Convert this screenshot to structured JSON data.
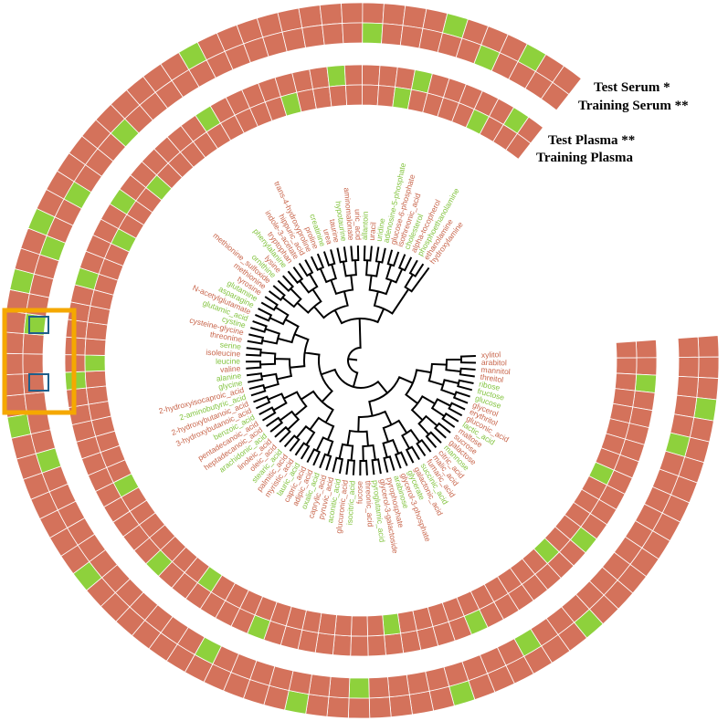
{
  "figure": {
    "cell_colors": [
      "#d4725b",
      "#8ed13c"
    ],
    "rings": [
      {
        "name": "Test Serum *",
        "values": [
          0,
          0,
          0,
          1,
          0,
          0,
          0,
          0,
          0,
          0,
          0,
          0,
          0,
          0,
          0,
          1,
          0,
          0,
          0,
          0,
          0,
          0,
          1,
          0,
          0,
          0,
          0,
          0,
          0,
          0,
          1,
          0,
          0,
          0,
          0,
          0,
          0,
          0,
          0,
          0,
          0,
          0,
          1,
          0,
          0,
          0,
          0,
          0,
          0,
          0,
          1,
          0,
          0,
          0,
          0,
          0,
          0,
          1,
          0,
          0,
          1,
          0,
          0,
          0,
          0,
          0,
          0,
          0,
          0,
          0,
          0,
          1,
          0,
          0,
          0,
          0,
          0,
          0,
          0,
          0,
          0,
          0,
          0,
          0,
          1,
          0,
          0,
          0,
          1,
          0,
          0
        ]
      },
      {
        "name": "Training Serum **",
        "values": [
          0,
          0,
          0,
          0,
          0,
          1,
          0,
          0,
          0,
          0,
          0,
          0,
          0,
          0,
          0,
          0,
          0,
          0,
          1,
          0,
          0,
          0,
          0,
          0,
          0,
          0,
          0,
          1,
          0,
          0,
          0,
          0,
          0,
          0,
          0,
          1,
          0,
          0,
          0,
          0,
          0,
          0,
          0,
          0,
          0,
          0,
          0,
          0,
          1,
          0,
          0,
          0,
          0,
          0,
          0,
          1,
          0,
          0,
          0,
          1,
          0,
          0,
          1,
          0,
          0,
          0,
          1,
          0,
          0,
          0,
          0,
          0,
          0,
          0,
          0,
          0,
          0,
          0,
          0,
          0,
          1,
          0,
          0,
          0,
          0,
          0,
          1,
          0,
          0,
          0,
          0
        ]
      },
      {
        "name": "Test Plasma **",
        "values": [
          0,
          0,
          1,
          0,
          0,
          0,
          0,
          0,
          0,
          0,
          0,
          0,
          1,
          0,
          0,
          0,
          0,
          0,
          0,
          0,
          1,
          0,
          0,
          0,
          0,
          0,
          0,
          0,
          0,
          0,
          0,
          0,
          0,
          1,
          0,
          0,
          0,
          0,
          0,
          0,
          1,
          0,
          0,
          0,
          0,
          0,
          0,
          0,
          0,
          0,
          0,
          0,
          1,
          0,
          0,
          0,
          0,
          0,
          1,
          0,
          0,
          0,
          0,
          1,
          0,
          0,
          0,
          0,
          0,
          0,
          1,
          0,
          0,
          0,
          0,
          0,
          0,
          0,
          1,
          0,
          0,
          0,
          0,
          1,
          0,
          0,
          0,
          0,
          0,
          1,
          0
        ]
      },
      {
        "name": "Training Plasma",
        "values": [
          0,
          0,
          0,
          0,
          0,
          0,
          0,
          0,
          1,
          0,
          0,
          0,
          0,
          0,
          1,
          0,
          0,
          0,
          0,
          0,
          0,
          0,
          0,
          0,
          0,
          1,
          0,
          0,
          0,
          0,
          0,
          0,
          0,
          0,
          0,
          0,
          0,
          1,
          0,
          0,
          0,
          0,
          0,
          0,
          0,
          1,
          0,
          0,
          0,
          0,
          0,
          0,
          0,
          1,
          0,
          0,
          0,
          0,
          0,
          0,
          0,
          1,
          0,
          0,
          0,
          1,
          0,
          0,
          0,
          0,
          0,
          0,
          0,
          0,
          0,
          1,
          0,
          0,
          0,
          0,
          0,
          0,
          1,
          0,
          0,
          0,
          0,
          1,
          0,
          0,
          0
        ]
      }
    ],
    "leaves": [
      {
        "label": "xylitol",
        "color": "#c8664c"
      },
      {
        "label": "arabitol",
        "color": "#c8664c"
      },
      {
        "label": "mannitol",
        "color": "#c8664c"
      },
      {
        "label": "threitol",
        "color": "#c8664c"
      },
      {
        "label": "ribose",
        "color": "#84c441"
      },
      {
        "label": "fructose",
        "color": "#84c441"
      },
      {
        "label": "glucose",
        "color": "#84c441"
      },
      {
        "label": "glycerol",
        "color": "#c8664c"
      },
      {
        "label": "erythritol",
        "color": "#c8664c"
      },
      {
        "label": "gluconic_acid",
        "color": "#c8664c"
      },
      {
        "label": "lactic_acid",
        "color": "#84c441"
      },
      {
        "label": "maltose",
        "color": "#c8664c"
      },
      {
        "label": "sucrose",
        "color": "#c8664c"
      },
      {
        "label": "galactose",
        "color": "#c8664c"
      },
      {
        "label": "mannose",
        "color": "#84c441"
      },
      {
        "label": "citric_acid",
        "color": "#c8664c"
      },
      {
        "label": "malic_acid",
        "color": "#c8664c"
      },
      {
        "label": "fumaric_acid",
        "color": "#c8664c"
      },
      {
        "label": "succinic_acid",
        "color": "#84c441"
      },
      {
        "label": "galactonic_acid",
        "color": "#c8664c"
      },
      {
        "label": "glycerate",
        "color": "#84c441"
      },
      {
        "label": "glycerol-3-phosphate",
        "color": "#c8664c"
      },
      {
        "label": "arabinose",
        "color": "#84c441"
      },
      {
        "label": "pyrophosphate",
        "color": "#c8664c"
      },
      {
        "label": "glycerol-3-galactoside",
        "color": "#c8664c"
      },
      {
        "label": "pyroglutamic_acid",
        "color": "#84c441"
      },
      {
        "label": "threonic_acid",
        "color": "#c8664c"
      },
      {
        "label": "fucose",
        "color": "#c8664c"
      },
      {
        "label": "isocitric_acid",
        "color": "#84c441"
      },
      {
        "label": "glucuronic_acid",
        "color": "#c8664c"
      },
      {
        "label": "aconitic_acid",
        "color": "#84c441"
      },
      {
        "label": "pyruvic_acid",
        "color": "#c8664c"
      },
      {
        "label": "caprylic_acid",
        "color": "#c8664c"
      },
      {
        "label": "oxalic_acid",
        "color": "#84c441"
      },
      {
        "label": "adipic_acid",
        "color": "#c8664c"
      },
      {
        "label": "capric_acid",
        "color": "#c8664c"
      },
      {
        "label": "lauric_acid",
        "color": "#84c441"
      },
      {
        "label": "myristic_acid",
        "color": "#c8664c"
      },
      {
        "label": "palmitic_acid",
        "color": "#c8664c"
      },
      {
        "label": "stearic_acid",
        "color": "#84c441"
      },
      {
        "label": "oleic_acid",
        "color": "#c8664c"
      },
      {
        "label": "linoleic_acid",
        "color": "#c8664c"
      },
      {
        "label": "arachidonic_acid",
        "color": "#84c441"
      },
      {
        "label": "heptadecanoic_acid",
        "color": "#c8664c"
      },
      {
        "label": "pentadecanoic_acid",
        "color": "#c8664c"
      },
      {
        "label": "benzoic_acid",
        "color": "#84c441"
      },
      {
        "label": "3-hydroxybutanoic_acid",
        "color": "#c8664c"
      },
      {
        "label": "2-hydroxybutanoic_acid",
        "color": "#c8664c"
      },
      {
        "label": "2-aminobutyric_acid",
        "color": "#84c441"
      },
      {
        "label": "2-hydroxyisocaproic_acid",
        "color": "#c8664c"
      },
      {
        "label": "glycine",
        "color": "#84c441"
      },
      {
        "label": "alanine",
        "color": "#84c441"
      },
      {
        "label": "valine",
        "color": "#c8664c"
      },
      {
        "label": "leucine",
        "color": "#84c441"
      },
      {
        "label": "isoleucine",
        "color": "#c8664c"
      },
      {
        "label": "serine",
        "color": "#84c441"
      },
      {
        "label": "threonine",
        "color": "#c8664c"
      },
      {
        "label": "cysteine-glycine",
        "color": "#c8664c"
      },
      {
        "label": "cystine",
        "color": "#84c441"
      },
      {
        "label": "glutamic_acid",
        "color": "#84c441"
      },
      {
        "label": "N-acetylglutamate",
        "color": "#c8664c"
      },
      {
        "label": "asparagine",
        "color": "#84c441"
      },
      {
        "label": "glutamine",
        "color": "#84c441"
      },
      {
        "label": "tyrosine",
        "color": "#c8664c"
      },
      {
        "label": "methionine",
        "color": "#c8664c"
      },
      {
        "label": "methionine_sulfoxide",
        "color": "#c8664c"
      },
      {
        "label": "ornithine",
        "color": "#84c441"
      },
      {
        "label": "lysine",
        "color": "#c8664c"
      },
      {
        "label": "phenylalanine",
        "color": "#84c441"
      },
      {
        "label": "tryptophan",
        "color": "#c8664c"
      },
      {
        "label": "indole-3-acetate",
        "color": "#c8664c"
      },
      {
        "label": "hippuric_acid",
        "color": "#c8664c"
      },
      {
        "label": "trans-4-hydroxyproline",
        "color": "#c8664c"
      },
      {
        "label": "proline",
        "color": "#c8664c"
      },
      {
        "label": "creatinine",
        "color": "#84c441"
      },
      {
        "label": "urea",
        "color": "#c8664c"
      },
      {
        "label": "taurine",
        "color": "#c8664c"
      },
      {
        "label": "hypotaurine",
        "color": "#84c441"
      },
      {
        "label": "aminomalonate",
        "color": "#c8664c"
      },
      {
        "label": "uric_acid",
        "color": "#c8664c"
      },
      {
        "label": "allantoin",
        "color": "#84c441"
      },
      {
        "label": "uracil",
        "color": "#c8664c"
      },
      {
        "label": "uridine",
        "color": "#84c441"
      },
      {
        "label": "adenosine-5-phosphate",
        "color": "#84c441"
      },
      {
        "label": "glucose-6-phosphate",
        "color": "#c8664c"
      },
      {
        "label": "isothreonic_acid",
        "color": "#c8664c"
      },
      {
        "label": "cholesterol",
        "color": "#84c441"
      },
      {
        "label": "alpha-tocopherol",
        "color": "#c8664c"
      },
      {
        "label": "phosphoethanolamine",
        "color": "#84c441"
      },
      {
        "label": "ethanolamine",
        "color": "#c8664c"
      },
      {
        "label": "hydroxylamine",
        "color": "#c8664c"
      }
    ]
  }
}
